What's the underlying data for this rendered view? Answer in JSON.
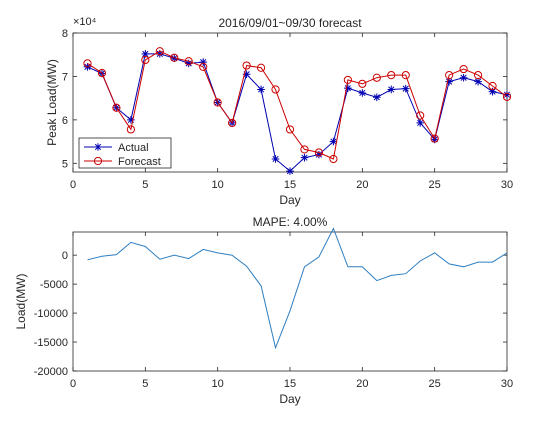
{
  "colors": {
    "actual": "#0000b3",
    "forecast": "#cc0000",
    "error": "#2e7fc2",
    "axis": "#262626"
  },
  "chart_data": [
    {
      "type": "line",
      "title": "2016/09/01~09/30 forecast",
      "xlabel": "Day",
      "ylabel": "Peak Load(MW)",
      "exponent_label": "×10⁴",
      "xlim": [
        0,
        30
      ],
      "ylim": [
        4.8,
        8
      ],
      "xticks": [
        0,
        5,
        10,
        15,
        20,
        25,
        30
      ],
      "yticks": [
        5,
        6,
        7,
        8
      ],
      "grid": false,
      "legend_position": "bottom-left",
      "x": [
        1,
        2,
        3,
        4,
        5,
        6,
        7,
        8,
        9,
        10,
        11,
        12,
        13,
        14,
        15,
        16,
        17,
        18,
        19,
        20,
        21,
        22,
        23,
        24,
        25,
        26,
        27,
        28,
        29,
        30
      ],
      "series": [
        {
          "name": "Actual",
          "color_key": "actual",
          "marker": "asterisk",
          "values": [
            7.22,
            7.07,
            6.28,
            6.0,
            7.52,
            7.52,
            7.42,
            7.3,
            7.33,
            6.4,
            5.93,
            7.05,
            6.7,
            5.1,
            4.82,
            5.13,
            5.2,
            5.5,
            6.73,
            6.62,
            6.52,
            6.7,
            6.72,
            5.93,
            5.55,
            6.88,
            6.97,
            6.88,
            6.65,
            6.58
          ]
        },
        {
          "name": "Forecast",
          "color_key": "forecast",
          "marker": "circle",
          "values": [
            7.3,
            7.08,
            6.28,
            5.78,
            7.38,
            7.58,
            7.43,
            7.35,
            7.22,
            6.4,
            5.93,
            7.25,
            7.2,
            6.7,
            5.78,
            5.32,
            5.25,
            5.1,
            6.92,
            6.83,
            6.97,
            7.03,
            7.03,
            6.1,
            5.57,
            7.03,
            7.17,
            7.03,
            6.78,
            6.53
          ]
        }
      ]
    },
    {
      "type": "line",
      "title": "MAPE: 4.00%",
      "xlabel": "Day",
      "ylabel": "Load(MW)",
      "xlim": [
        0,
        30
      ],
      "ylim": [
        -20000,
        4000
      ],
      "xticks": [
        0,
        5,
        10,
        15,
        20,
        25,
        30
      ],
      "yticks": [
        -20000,
        -15000,
        -10000,
        -5000,
        0
      ],
      "grid": false,
      "x": [
        1,
        2,
        3,
        4,
        5,
        6,
        7,
        8,
        9,
        10,
        11,
        12,
        13,
        14,
        15,
        16,
        17,
        18,
        19,
        20,
        21,
        22,
        23,
        24,
        25,
        26,
        27,
        28,
        29,
        30
      ],
      "series": [
        {
          "color_key": "error",
          "values": [
            -800,
            -200,
            100,
            2200,
            1500,
            -700,
            0,
            -600,
            1000,
            400,
            0,
            -1900,
            -5300,
            -16000,
            -9600,
            -2000,
            -300,
            4600,
            -2000,
            -2000,
            -4400,
            -3500,
            -3200,
            -1000,
            400,
            -1500,
            -2000,
            -1200,
            -1200,
            400
          ]
        }
      ]
    }
  ]
}
